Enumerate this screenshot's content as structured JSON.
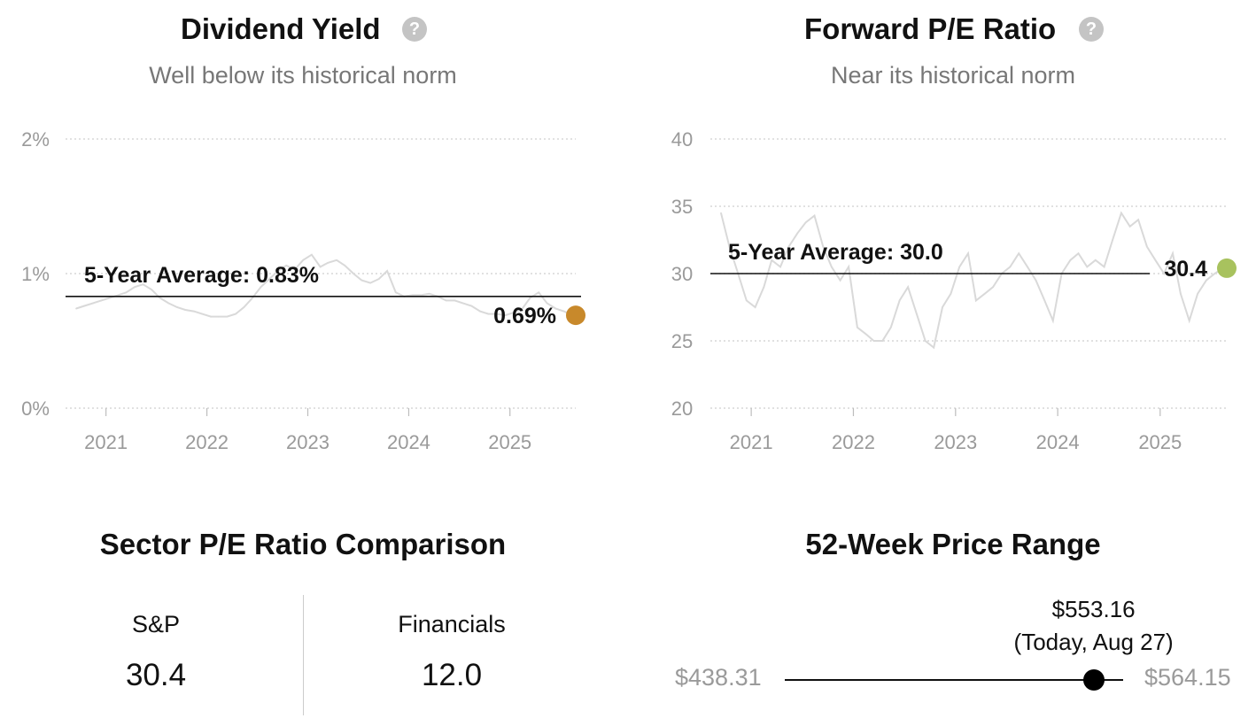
{
  "panels": {
    "dividend": {
      "title": "Dividend Yield",
      "help_icon": "help-circle-icon",
      "subtitle": "Well below its historical norm",
      "avg_label": "5-Year Average: 0.83%",
      "current_label": "0.69%"
    },
    "pe": {
      "title": "Forward P/E Ratio",
      "help_icon": "help-circle-icon",
      "subtitle": "Near its historical norm",
      "avg_label": "5-Year Average: 30.0",
      "current_label": "30.4"
    }
  },
  "chart_data": [
    {
      "type": "line",
      "title": "Dividend Yield",
      "subtitle": "Well below its historical norm",
      "y_ticks": [
        "0%",
        "1%",
        "2%"
      ],
      "ylim": [
        0,
        2
      ],
      "x_ticks": [
        "2021",
        "2022",
        "2023",
        "2024",
        "2025"
      ],
      "x_domain": [
        "2020-08-27",
        "2025-08-27"
      ],
      "grid": true,
      "line_color": "#d9d9d9",
      "marker_color": "#c8892b",
      "average": 0.83,
      "current": 0.69,
      "series": [
        {
          "x": [
            "2020-09",
            "2020-10",
            "2020-11",
            "2020-12",
            "2021-01",
            "2021-02",
            "2021-03",
            "2021-04",
            "2021-05",
            "2021-06",
            "2021-07",
            "2021-08",
            "2021-09",
            "2021-10",
            "2021-11",
            "2021-12",
            "2022-01",
            "2022-02",
            "2022-03",
            "2022-04",
            "2022-05",
            "2022-06",
            "2022-07",
            "2022-08",
            "2022-09",
            "2022-10",
            "2022-11",
            "2022-12",
            "2023-01",
            "2023-02",
            "2023-03",
            "2023-04",
            "2023-05",
            "2023-06",
            "2023-07",
            "2023-08",
            "2023-09",
            "2023-10",
            "2023-11",
            "2023-12",
            "2024-01",
            "2024-02",
            "2024-03",
            "2024-04",
            "2024-05",
            "2024-06",
            "2024-07",
            "2024-08",
            "2024-09",
            "2024-10",
            "2024-11",
            "2024-12",
            "2025-01",
            "2025-02",
            "2025-03",
            "2025-04",
            "2025-05",
            "2025-06",
            "2025-07",
            "2025-08"
          ],
          "values": [
            0.74,
            0.76,
            0.78,
            0.8,
            0.82,
            0.84,
            0.86,
            0.9,
            0.92,
            0.88,
            0.82,
            0.78,
            0.75,
            0.73,
            0.72,
            0.7,
            0.68,
            0.68,
            0.68,
            0.7,
            0.75,
            0.82,
            0.9,
            0.96,
            1.02,
            1.06,
            1.03,
            1.1,
            1.14,
            1.05,
            1.08,
            1.1,
            1.06,
            1.0,
            0.95,
            0.93,
            0.96,
            1.02,
            0.86,
            0.83,
            0.84,
            0.84,
            0.85,
            0.83,
            0.8,
            0.8,
            0.78,
            0.76,
            0.72,
            0.7,
            0.7,
            0.69,
            0.71,
            0.74,
            0.82,
            0.86,
            0.78,
            0.74,
            0.72,
            0.69
          ]
        }
      ]
    },
    {
      "type": "line",
      "title": "Forward P/E Ratio",
      "subtitle": "Near its historical norm",
      "y_ticks": [
        "20",
        "25",
        "30",
        "35",
        "40"
      ],
      "ylim": [
        20,
        40
      ],
      "x_ticks": [
        "2021",
        "2022",
        "2023",
        "2024",
        "2025"
      ],
      "x_domain": [
        "2020-08-27",
        "2025-08-27"
      ],
      "grid": true,
      "line_color": "#d9d9d9",
      "marker_color": "#a8c25e",
      "average": 30.0,
      "current": 30.4,
      "series": [
        {
          "x": [
            "2020-09",
            "2020-10",
            "2020-11",
            "2020-12",
            "2021-01",
            "2021-02",
            "2021-03",
            "2021-04",
            "2021-05",
            "2021-06",
            "2021-07",
            "2021-08",
            "2021-09",
            "2021-10",
            "2021-11",
            "2021-12",
            "2022-01",
            "2022-02",
            "2022-03",
            "2022-04",
            "2022-05",
            "2022-06",
            "2022-07",
            "2022-08",
            "2022-09",
            "2022-10",
            "2022-11",
            "2022-12",
            "2023-01",
            "2023-02",
            "2023-03",
            "2023-04",
            "2023-05",
            "2023-06",
            "2023-07",
            "2023-08",
            "2023-09",
            "2023-10",
            "2023-11",
            "2023-12",
            "2024-01",
            "2024-02",
            "2024-03",
            "2024-04",
            "2024-05",
            "2024-06",
            "2024-07",
            "2024-08",
            "2024-09",
            "2024-10",
            "2024-11",
            "2024-12",
            "2025-01",
            "2025-02",
            "2025-03",
            "2025-04",
            "2025-05",
            "2025-06",
            "2025-07",
            "2025-08"
          ],
          "values": [
            34.5,
            32.0,
            30.0,
            28.0,
            27.5,
            29.0,
            31.0,
            30.5,
            32.0,
            33.0,
            33.8,
            34.3,
            32.0,
            30.5,
            29.5,
            30.5,
            26.0,
            25.5,
            25.0,
            25.0,
            26.0,
            28.0,
            29.0,
            27.0,
            25.0,
            24.5,
            27.5,
            28.5,
            30.5,
            31.5,
            28.0,
            28.5,
            29.0,
            30.0,
            30.5,
            31.5,
            30.5,
            29.5,
            28.0,
            26.5,
            30.0,
            31.0,
            31.5,
            30.5,
            31.0,
            30.5,
            32.5,
            34.5,
            33.5,
            34.0,
            32.0,
            31.0,
            30.0,
            31.5,
            28.5,
            26.5,
            28.5,
            29.5,
            30.0,
            30.4
          ]
        }
      ]
    }
  ],
  "sector": {
    "title": "Sector P/E Ratio Comparison",
    "columns": [
      {
        "label": "S&P",
        "value": "30.4"
      },
      {
        "label": "Financials",
        "value": "12.0"
      }
    ]
  },
  "price_range": {
    "title": "52-Week Price Range",
    "low": "$438.31",
    "high": "$564.15",
    "current": "$553.16",
    "current_note": "(Today, Aug 27)",
    "low_value": 438.31,
    "high_value": 564.15,
    "current_value": 553.16
  }
}
